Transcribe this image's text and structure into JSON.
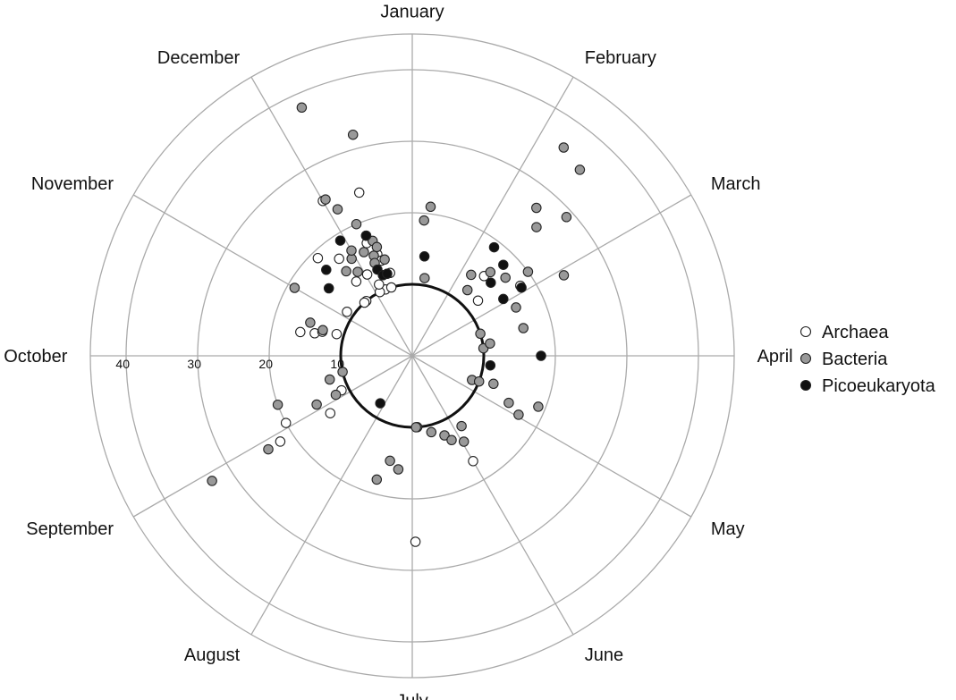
{
  "chart_data": {
    "type": "scatter",
    "subtype": "polar",
    "angular_axis": {
      "labels": [
        "January",
        "February",
        "March",
        "April",
        "May",
        "June",
        "July",
        "August",
        "September",
        "October",
        "November",
        "December"
      ],
      "direction": "clockwise",
      "start": "top"
    },
    "radial_axis": {
      "ticks": [
        10,
        20,
        30,
        40
      ],
      "tick_labels": [
        "10",
        "20",
        "30",
        "40"
      ],
      "range": [
        0,
        45
      ],
      "reference_circle": 10
    },
    "legend": {
      "placement": "right",
      "entries": [
        "Archaea",
        "Bacteria",
        "Picoeukaryota"
      ]
    },
    "grid": true,
    "series": [
      {
        "name": "Archaea",
        "color": "#ffffff",
        "points": [
          {
            "angle_deg": 330,
            "r": 25
          },
          {
            "angle_deg": 342,
            "r": 24
          },
          {
            "angle_deg": 316,
            "r": 19
          },
          {
            "angle_deg": 323,
            "r": 17
          },
          {
            "angle_deg": 338,
            "r": 17
          },
          {
            "angle_deg": 341,
            "r": 15
          },
          {
            "angle_deg": 342,
            "r": 14
          },
          {
            "angle_deg": 331,
            "r": 13
          },
          {
            "angle_deg": 338,
            "r": 10
          },
          {
            "angle_deg": 343,
            "r": 10
          },
          {
            "angle_deg": 323,
            "r": 13
          },
          {
            "angle_deg": 345,
            "r": 12
          },
          {
            "angle_deg": 333,
            "r": 10
          },
          {
            "angle_deg": 335,
            "r": 11
          },
          {
            "angle_deg": 320,
            "r": 10
          },
          {
            "angle_deg": 318,
            "r": 10
          },
          {
            "angle_deg": 304,
            "r": 11
          },
          {
            "angle_deg": 282,
            "r": 16
          },
          {
            "angle_deg": 283,
            "r": 14
          },
          {
            "angle_deg": 285,
            "r": 13
          },
          {
            "angle_deg": 286,
            "r": 11
          },
          {
            "angle_deg": 244,
            "r": 11
          },
          {
            "angle_deg": 235,
            "r": 14
          },
          {
            "angle_deg": 242,
            "r": 20
          },
          {
            "angle_deg": 237,
            "r": 22
          },
          {
            "angle_deg": 150,
            "r": 17
          },
          {
            "angle_deg": 179,
            "r": 26
          },
          {
            "angle_deg": 42,
            "r": 15
          },
          {
            "angle_deg": 50,
            "r": 12
          },
          {
            "angle_deg": 57,
            "r": 18
          }
        ]
      },
      {
        "name": "Bacteria",
        "color": "#999999",
        "points": [
          {
            "angle_deg": 336,
            "r": 38
          },
          {
            "angle_deg": 345,
            "r": 32
          },
          {
            "angle_deg": 331,
            "r": 25
          },
          {
            "angle_deg": 333,
            "r": 23
          },
          {
            "angle_deg": 337,
            "r": 20
          },
          {
            "angle_deg": 339,
            "r": 18
          },
          {
            "angle_deg": 341,
            "r": 17
          },
          {
            "angle_deg": 335,
            "r": 16
          },
          {
            "angle_deg": 339,
            "r": 15
          },
          {
            "angle_deg": 342,
            "r": 16
          },
          {
            "angle_deg": 328,
            "r": 16
          },
          {
            "angle_deg": 327,
            "r": 14
          },
          {
            "angle_deg": 330,
            "r": 17
          },
          {
            "angle_deg": 322,
            "r": 15
          },
          {
            "angle_deg": 340,
            "r": 12
          },
          {
            "angle_deg": 338,
            "r": 14
          },
          {
            "angle_deg": 343,
            "r": 12
          },
          {
            "angle_deg": 344,
            "r": 14
          },
          {
            "angle_deg": 300,
            "r": 19
          },
          {
            "angle_deg": 286,
            "r": 13
          },
          {
            "angle_deg": 288,
            "r": 15
          },
          {
            "angle_deg": 257,
            "r": 10
          },
          {
            "angle_deg": 254,
            "r": 12
          },
          {
            "angle_deg": 243,
            "r": 12
          },
          {
            "angle_deg": 243,
            "r": 15
          },
          {
            "angle_deg": 250,
            "r": 20
          },
          {
            "angle_deg": 237,
            "r": 24
          },
          {
            "angle_deg": 238,
            "r": 33
          },
          {
            "angle_deg": 192,
            "r": 15
          },
          {
            "angle_deg": 196,
            "r": 18
          },
          {
            "angle_deg": 187,
            "r": 16
          },
          {
            "angle_deg": 176,
            "r": 10
          },
          {
            "angle_deg": 177,
            "r": 10
          },
          {
            "angle_deg": 166,
            "r": 11
          },
          {
            "angle_deg": 158,
            "r": 12
          },
          {
            "angle_deg": 155,
            "r": 13
          },
          {
            "angle_deg": 145,
            "r": 12
          },
          {
            "angle_deg": 149,
            "r": 14
          },
          {
            "angle_deg": 112,
            "r": 9
          },
          {
            "angle_deg": 111,
            "r": 10
          },
          {
            "angle_deg": 109,
            "r": 12
          },
          {
            "angle_deg": 116,
            "r": 15
          },
          {
            "angle_deg": 119,
            "r": 17
          },
          {
            "angle_deg": 112,
            "r": 19
          },
          {
            "angle_deg": 84,
            "r": 10
          },
          {
            "angle_deg": 81,
            "r": 11
          },
          {
            "angle_deg": 72,
            "r": 10
          },
          {
            "angle_deg": 76,
            "r": 16
          },
          {
            "angle_deg": 50,
            "r": 17
          },
          {
            "angle_deg": 54,
            "r": 20
          },
          {
            "angle_deg": 43,
            "r": 16
          },
          {
            "angle_deg": 44,
            "r": 25
          },
          {
            "angle_deg": 40,
            "r": 27
          },
          {
            "angle_deg": 42,
            "r": 35
          },
          {
            "angle_deg": 48,
            "r": 29
          },
          {
            "angle_deg": 36,
            "r": 36
          },
          {
            "angle_deg": 62,
            "r": 24
          },
          {
            "angle_deg": 65,
            "r": 16
          },
          {
            "angle_deg": 40,
            "r": 12
          },
          {
            "angle_deg": 36,
            "r": 14
          },
          {
            "angle_deg": 9,
            "r": 11
          },
          {
            "angle_deg": 7,
            "r": 21
          },
          {
            "angle_deg": 5,
            "r": 19
          }
        ]
      },
      {
        "name": "Picoeukaryota",
        "color": "#111111",
        "points": [
          {
            "angle_deg": 328,
            "r": 19
          },
          {
            "angle_deg": 339,
            "r": 18
          },
          {
            "angle_deg": 315,
            "r": 17
          },
          {
            "angle_deg": 309,
            "r": 15
          },
          {
            "angle_deg": 338,
            "r": 13
          },
          {
            "angle_deg": 340,
            "r": 12
          },
          {
            "angle_deg": 343,
            "r": 12
          },
          {
            "angle_deg": 90,
            "r": 18
          },
          {
            "angle_deg": 97,
            "r": 11
          },
          {
            "angle_deg": 58,
            "r": 15
          },
          {
            "angle_deg": 58,
            "r": 18
          },
          {
            "angle_deg": 47,
            "r": 15
          },
          {
            "angle_deg": 45,
            "r": 18
          },
          {
            "angle_deg": 37,
            "r": 19
          },
          {
            "angle_deg": 7,
            "r": 14
          },
          {
            "angle_deg": 214,
            "r": 8
          }
        ]
      }
    ]
  }
}
